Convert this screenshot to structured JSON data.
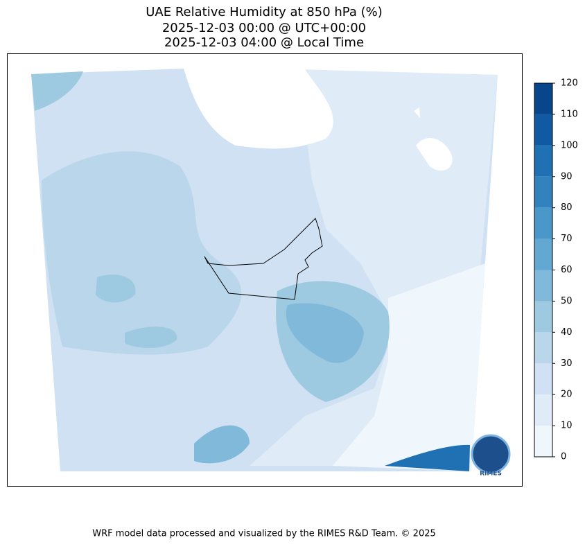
{
  "title": [
    "UAE Relative Humidity at 850 hPa (%)",
    "2025-12-03 00:00 @ UTC+00:00",
    "2025-12-03 04:00 @ Local Time"
  ],
  "colorbar": {
    "lim": [
      0,
      120
    ],
    "ticks": [
      0,
      10,
      20,
      30,
      40,
      50,
      60,
      70,
      80,
      90,
      100,
      110,
      120
    ],
    "colors": [
      "#eff6fc",
      "#dfebf7",
      "#cfe1f2",
      "#b9d6eb",
      "#9ecae1",
      "#81b9db",
      "#63a8d3",
      "#4a97c9",
      "#3282be",
      "#2070b4",
      "#0f5aa3",
      "#08468b"
    ]
  },
  "logo_text": "RIMES",
  "footer": "WRF model data processed and visualized by the RIMES R&D Team. © 2025"
}
